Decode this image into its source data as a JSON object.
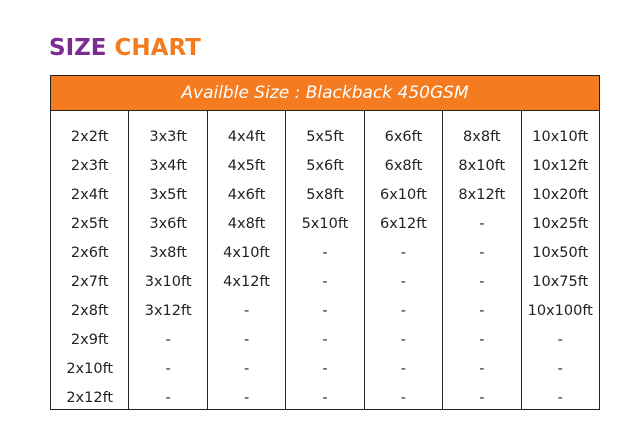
{
  "title": {
    "word1": "SIZE",
    "word2": "CHART",
    "color1": "#7a2c92",
    "color2": "#f47b20"
  },
  "header": {
    "text": "Availble Size : Blackback 450GSM",
    "bg_color": "#f47b20"
  },
  "columns": [
    [
      "2x2ft",
      "2x3ft",
      "2x4ft",
      "2x5ft",
      "2x6ft",
      "2x7ft",
      "2x8ft",
      "2x9ft",
      "2x10ft",
      "2x12ft"
    ],
    [
      "3x3ft",
      "3x4ft",
      "3x5ft",
      "3x6ft",
      "3x8ft",
      "3x10ft",
      "3x12ft",
      "-",
      "-",
      "-"
    ],
    [
      "4x4ft",
      "4x5ft",
      "4x6ft",
      "4x8ft",
      "4x10ft",
      "4x12ft",
      "-",
      "-",
      "-",
      "-"
    ],
    [
      "5x5ft",
      "5x6ft",
      "5x8ft",
      "5x10ft",
      "-",
      "-",
      "-",
      "-",
      "-",
      "-"
    ],
    [
      "6x6ft",
      "6x8ft",
      "6x10ft",
      "6x12ft",
      "-",
      "-",
      "-",
      "-",
      "-",
      "-"
    ],
    [
      "8x8ft",
      "8x10ft",
      "8x12ft",
      "-",
      "-",
      "-",
      "-",
      "-",
      "-",
      "-"
    ],
    [
      "10x10ft",
      "10x12ft",
      "10x20ft",
      "10x25ft",
      "10x50ft",
      "10x75ft",
      "10x100ft",
      "-",
      "-",
      "-"
    ]
  ]
}
